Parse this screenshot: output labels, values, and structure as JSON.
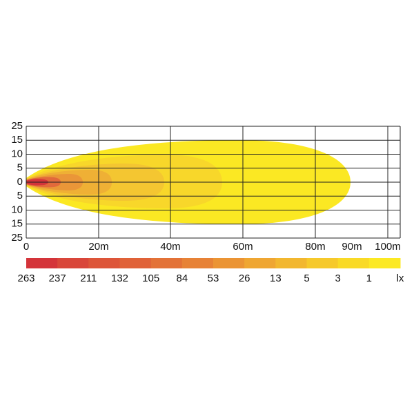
{
  "diagram": {
    "y_labels": [
      "25",
      "15",
      "10",
      "5",
      "0",
      "5",
      "10",
      "15",
      "25"
    ],
    "x_labels": [
      "0",
      "20m",
      "40m",
      "60m",
      "80m",
      "90m",
      "100m"
    ],
    "legend": {
      "items": [
        {
          "label": "263",
          "color": "#d4343a"
        },
        {
          "label": "237",
          "color": "#d9463a"
        },
        {
          "label": "211",
          "color": "#dd5539"
        },
        {
          "label": "132",
          "color": "#e06238"
        },
        {
          "label": "105",
          "color": "#e37237"
        },
        {
          "label": "84",
          "color": "#e78236"
        },
        {
          "label": "53",
          "color": "#eb9434"
        },
        {
          "label": "26",
          "color": "#efa632"
        },
        {
          "label": "13",
          "color": "#f2b72f"
        },
        {
          "label": "5",
          "color": "#f6c92b"
        },
        {
          "label": "3",
          "color": "#f9da26"
        },
        {
          "label": "1",
          "color": "#fce923"
        }
      ],
      "unit": "lx"
    }
  }
}
